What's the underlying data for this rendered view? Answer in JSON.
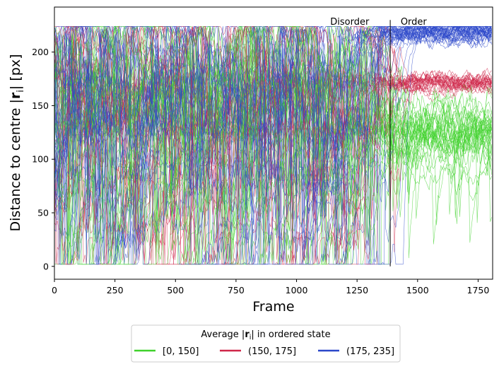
{
  "chart_data": {
    "type": "line",
    "title": "",
    "xlabel": "Frame",
    "ylabel": "Distance to centre |r_i| [px]",
    "ylabel_parts": {
      "pre": "Distance to centre |",
      "bold": "r",
      "sub": "i",
      "post": "| [px]"
    },
    "xlim": [
      0,
      1810
    ],
    "ylim": [
      -12,
      242
    ],
    "xticks": [
      0,
      250,
      500,
      750,
      1000,
      1250,
      1500,
      1750
    ],
    "yticks": [
      0,
      50,
      100,
      150,
      200
    ],
    "grid": false,
    "transition_frame": 1387,
    "annotations": [
      {
        "text": "Disorder",
        "x": 1300,
        "y": 228,
        "anchor": "end"
      },
      {
        "text": "Order",
        "x": 1430,
        "y": 228,
        "anchor": "start"
      }
    ],
    "legend": {
      "title_parts": {
        "pre": "Average |",
        "bold": "r",
        "sub": "i",
        "post": "| in ordered state"
      },
      "placement": "below",
      "entries": [
        {
          "label": "[0, 150]",
          "color": "#3fd12b"
        },
        {
          "label": "(150, 175]",
          "color": "#cf2749"
        },
        {
          "label": "(175, 235]",
          "color": "#2b47c9"
        }
      ]
    },
    "series": [
      {
        "color": "#3fd12b",
        "count": 34,
        "final_mean": 128,
        "early_range": [
          0,
          222
        ]
      },
      {
        "color": "#cf2749",
        "count": 26,
        "final_mean": 172,
        "early_range": [
          0,
          222
        ]
      },
      {
        "color": "#2b47c9",
        "count": 36,
        "final_mean": 219,
        "early_range": [
          0,
          222
        ]
      }
    ]
  }
}
